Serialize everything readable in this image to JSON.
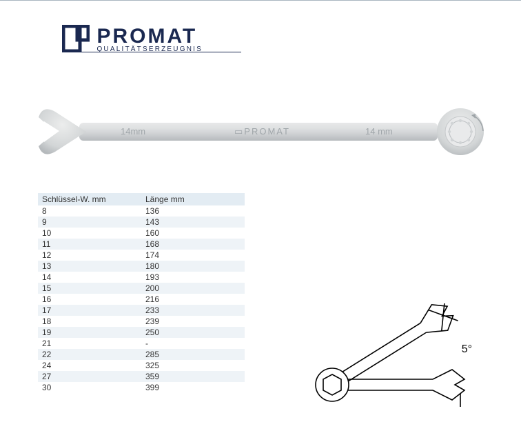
{
  "brand": {
    "name": "PROMAT",
    "tagline": "QUALITÄTSERZEUGNIS",
    "logo_color": "#1a2850"
  },
  "wrench": {
    "size_label_left": "14mm",
    "brand_label": "PROMAT",
    "size_label_right": "14 mm",
    "body_color": "#d5d7d8",
    "body_gradient_top": "#e8e9ea",
    "body_gradient_bottom": "#bcbfc1",
    "text_color": "#9ea4a8"
  },
  "spec_table": {
    "columns": [
      "Schlüssel-W. mm",
      "Länge mm"
    ],
    "rows": [
      [
        "8",
        "136"
      ],
      [
        "9",
        "143"
      ],
      [
        "10",
        "160"
      ],
      [
        "11",
        "168"
      ],
      [
        "12",
        "174"
      ],
      [
        "13",
        "180"
      ],
      [
        "14",
        "193"
      ],
      [
        "15",
        "200"
      ],
      [
        "16",
        "216"
      ],
      [
        "17",
        "233"
      ],
      [
        "18",
        "239"
      ],
      [
        "19",
        "250"
      ],
      [
        "21",
        "-"
      ],
      [
        "22",
        "285"
      ],
      [
        "24",
        "325"
      ],
      [
        "27",
        "359"
      ],
      [
        "30",
        "399"
      ]
    ],
    "header_bg": "#e3ecf3",
    "alt_row_bg": "#eef3f7",
    "text_color": "#333333",
    "font_size_pt": 9
  },
  "diagram": {
    "angle_label": "5°",
    "stroke_color": "#000000",
    "stroke_width": 1.5
  }
}
